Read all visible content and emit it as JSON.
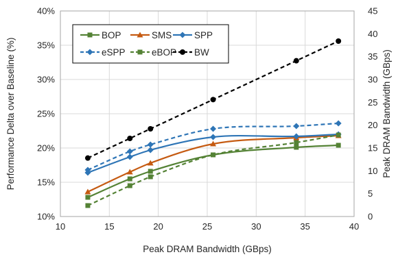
{
  "chart_data": {
    "type": "line",
    "xlabel": "Peak DRAM Bandwidth (GBps)",
    "ylabel": "Performance Delta over Baseline (%)",
    "y2label": "Peak DRAM Bandwidth (GBps)",
    "xlim": [
      10,
      40
    ],
    "xticks": [
      10,
      15,
      20,
      25,
      30,
      35,
      40
    ],
    "ylim": [
      10,
      40
    ],
    "yticks": [
      10,
      15,
      20,
      25,
      30,
      35,
      40
    ],
    "ytick_labels": [
      "10%",
      "15%",
      "20%",
      "25%",
      "30%",
      "35%",
      "40%"
    ],
    "y2lim": [
      0,
      45
    ],
    "y2ticks": [
      0,
      5,
      10,
      15,
      20,
      25,
      30,
      35,
      40,
      45
    ],
    "grid": "vertical and horizontal",
    "legend_position": "top-left",
    "x": [
      12.8,
      17.1,
      19.2,
      25.6,
      34.1,
      38.4
    ],
    "series": [
      {
        "name": "BOP",
        "axis": "left",
        "color": "#548235",
        "dash": "solid",
        "marker": "square",
        "smooth": true,
        "values": [
          12.8,
          15.5,
          16.6,
          19.0,
          20.1,
          20.4
        ]
      },
      {
        "name": "SMS",
        "axis": "left",
        "color": "#c55a11",
        "dash": "solid",
        "marker": "triangle",
        "smooth": true,
        "values": [
          13.6,
          16.5,
          17.8,
          20.6,
          21.5,
          21.8
        ]
      },
      {
        "name": "SPP",
        "axis": "left",
        "color": "#2e75b6",
        "dash": "solid",
        "marker": "diamond",
        "smooth": true,
        "values": [
          16.4,
          18.7,
          19.7,
          21.6,
          21.7,
          22.0
        ]
      },
      {
        "name": "eSPP",
        "axis": "left",
        "color": "#2e75b6",
        "dash": "dashed",
        "marker": "diamond",
        "smooth": true,
        "values": [
          16.8,
          19.5,
          20.5,
          22.8,
          23.2,
          23.6
        ]
      },
      {
        "name": "eBOP",
        "axis": "left",
        "color": "#548235",
        "dash": "dashed",
        "marker": "square",
        "smooth": true,
        "values": [
          11.6,
          14.5,
          15.8,
          19.0,
          20.8,
          21.9
        ]
      },
      {
        "name": "BW",
        "axis": "right",
        "color": "#000000",
        "dash": "dashed",
        "marker": "circle",
        "smooth": false,
        "values": [
          12.8,
          17.1,
          19.2,
          25.6,
          34.1,
          38.4
        ]
      }
    ]
  }
}
